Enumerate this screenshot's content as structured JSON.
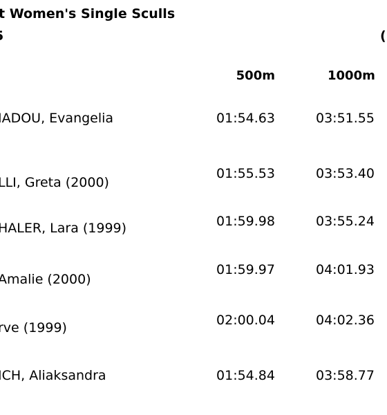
{
  "header": {
    "title_line1": "t Women's Single Sculls",
    "title_line2": "5",
    "corner_mark": "("
  },
  "columns": {
    "split_500": "500m",
    "split_1000": "1000m"
  },
  "rows": [
    {
      "name": "IADOU, Evangelia",
      "t500": "01:54.63",
      "t1000": "03:51.55"
    },
    {
      "name": "LLI, Greta (2000)",
      "t500": "01:55.53",
      "t1000": "03:53.40"
    },
    {
      "name": "HALER, Lara (1999)",
      "t500": "01:59.98",
      "t1000": "03:55.24"
    },
    {
      "name": "Amalie (2000)",
      "t500": "01:59.97",
      "t1000": "04:01.93"
    },
    {
      "name": "rve (1999)",
      "t500": "02:00.04",
      "t1000": "04:02.36"
    },
    {
      "name": "ICH, Aliaksandra",
      "t500": "01:54.84",
      "t1000": "03:58.77"
    }
  ]
}
